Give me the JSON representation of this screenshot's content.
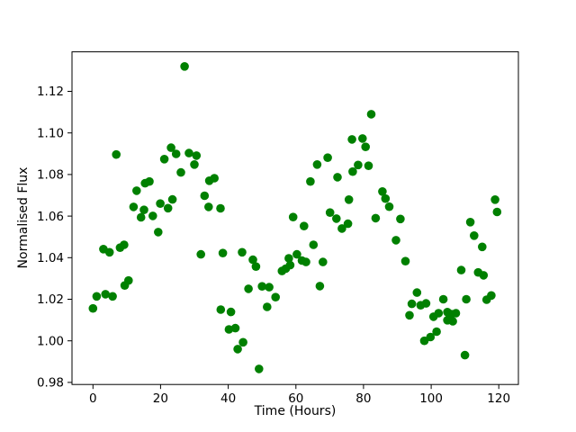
{
  "chart_data": {
    "type": "scatter",
    "title": "",
    "xlabel": "Time (Hours)",
    "ylabel": "Normalised Flux",
    "xlim": [
      -6.2,
      125.8
    ],
    "ylim": [
      0.979,
      1.139
    ],
    "xticks": [
      0,
      20,
      40,
      60,
      80,
      100,
      120
    ],
    "xtick_labels": [
      "0",
      "20",
      "40",
      "60",
      "80",
      "100",
      "120"
    ],
    "yticks": [
      0.98,
      1.0,
      1.02,
      1.04,
      1.06,
      1.08,
      1.1,
      1.12
    ],
    "ytick_labels": [
      "0.98",
      "1.00",
      "1.02",
      "1.04",
      "1.06",
      "1.08",
      "1.10",
      "1.12"
    ],
    "grid": false,
    "legend": null,
    "marker_color": "#008000",
    "marker_radius_px": 4.8,
    "axis_color": "#000000",
    "background_color": "#ffffff",
    "points": [
      [
        0.0,
        1.0156
      ],
      [
        1.1,
        1.0214
      ],
      [
        3.1,
        1.0441
      ],
      [
        3.7,
        1.0224
      ],
      [
        4.9,
        1.0426
      ],
      [
        5.8,
        1.0214
      ],
      [
        6.9,
        1.0896
      ],
      [
        8.0,
        1.0448
      ],
      [
        9.2,
        1.0462
      ],
      [
        9.4,
        1.0266
      ],
      [
        10.5,
        1.029
      ],
      [
        12.0,
        1.0644
      ],
      [
        12.9,
        1.0722
      ],
      [
        14.2,
        1.0594
      ],
      [
        15.1,
        1.063
      ],
      [
        15.4,
        1.0758
      ],
      [
        16.7,
        1.0766
      ],
      [
        17.7,
        1.0601
      ],
      [
        19.3,
        1.0523
      ],
      [
        19.9,
        1.066
      ],
      [
        21.1,
        1.0874
      ],
      [
        22.2,
        1.0638
      ],
      [
        23.1,
        1.0929
      ],
      [
        23.5,
        1.068
      ],
      [
        24.6,
        1.0899
      ],
      [
        26.0,
        1.081
      ],
      [
        27.1,
        1.132
      ],
      [
        28.4,
        1.0903
      ],
      [
        30.0,
        1.0848
      ],
      [
        30.6,
        1.0891
      ],
      [
        31.9,
        1.0416
      ],
      [
        33.0,
        1.0698
      ],
      [
        34.2,
        1.0644
      ],
      [
        34.4,
        1.077
      ],
      [
        35.9,
        1.0782
      ],
      [
        37.7,
        1.0637
      ],
      [
        37.8,
        1.015
      ],
      [
        38.4,
        1.0422
      ],
      [
        40.2,
        1.0055
      ],
      [
        40.8,
        1.0139
      ],
      [
        42.1,
        1.0061
      ],
      [
        42.8,
        0.996
      ],
      [
        44.1,
        1.0426
      ],
      [
        44.4,
        0.9993
      ],
      [
        46.0,
        1.025
      ],
      [
        47.3,
        1.039
      ],
      [
        48.2,
        1.0357
      ],
      [
        49.1,
        0.9865
      ],
      [
        50.0,
        1.0262
      ],
      [
        51.5,
        1.0163
      ],
      [
        52.1,
        1.0258
      ],
      [
        54.0,
        1.021
      ],
      [
        55.9,
        1.0336
      ],
      [
        57.0,
        1.0347
      ],
      [
        57.9,
        1.0397
      ],
      [
        58.3,
        1.0364
      ],
      [
        59.2,
        1.0595
      ],
      [
        60.3,
        1.0416
      ],
      [
        61.8,
        1.0386
      ],
      [
        62.4,
        1.0552
      ],
      [
        63.0,
        1.0379
      ],
      [
        64.3,
        1.0766
      ],
      [
        65.2,
        1.0462
      ],
      [
        66.3,
        1.0848
      ],
      [
        67.1,
        1.0263
      ],
      [
        68.0,
        1.0379
      ],
      [
        69.4,
        1.0881
      ],
      [
        70.1,
        1.0617
      ],
      [
        72.0,
        1.0588
      ],
      [
        72.3,
        1.0787
      ],
      [
        73.6,
        1.054
      ],
      [
        75.4,
        1.0563
      ],
      [
        75.7,
        1.0679
      ],
      [
        76.6,
        1.0969
      ],
      [
        76.8,
        1.0814
      ],
      [
        78.4,
        1.0846
      ],
      [
        79.7,
        1.0973
      ],
      [
        80.6,
        1.0933
      ],
      [
        81.5,
        1.0842
      ],
      [
        82.3,
        1.109
      ],
      [
        83.6,
        1.059
      ],
      [
        85.6,
        1.0718
      ],
      [
        86.5,
        1.0684
      ],
      [
        87.6,
        1.0645
      ],
      [
        89.6,
        1.0484
      ],
      [
        90.9,
        1.0586
      ],
      [
        92.4,
        1.0383
      ],
      [
        93.6,
        1.0123
      ],
      [
        94.3,
        1.0178
      ],
      [
        95.8,
        1.0232
      ],
      [
        96.9,
        1.0171
      ],
      [
        98.0,
        1.0
      ],
      [
        98.5,
        1.018
      ],
      [
        99.8,
        1.0018
      ],
      [
        100.7,
        1.0116
      ],
      [
        101.6,
        1.0044
      ],
      [
        102.2,
        1.0133
      ],
      [
        103.6,
        1.02
      ],
      [
        104.8,
        1.0138
      ],
      [
        104.8,
        1.0099
      ],
      [
        106.0,
        1.0128
      ],
      [
        106.4,
        1.0094
      ],
      [
        107.3,
        1.0133
      ],
      [
        108.9,
        1.034
      ],
      [
        110.0,
        0.9931
      ],
      [
        110.4,
        1.02
      ],
      [
        111.6,
        1.0571
      ],
      [
        112.7,
        1.0506
      ],
      [
        113.9,
        1.0329
      ],
      [
        115.1,
        1.0452
      ],
      [
        115.5,
        1.0315
      ],
      [
        116.4,
        1.0198
      ],
      [
        117.8,
        1.0218
      ],
      [
        118.9,
        1.0679
      ],
      [
        119.5,
        1.062
      ]
    ]
  }
}
